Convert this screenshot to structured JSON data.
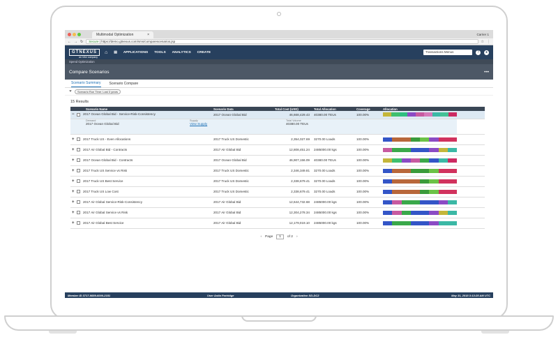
{
  "browser": {
    "tab_title": "Multimodal Optimization",
    "carrier": "Carrier 1",
    "url_secure": "Secure",
    "url": "https://demo.gtnexus.com/sms/comparescenarios.jsp"
  },
  "nav": {
    "logo": "GTNEXUS",
    "logo_sub": "an Infor company",
    "items": [
      "APPLICATIONS",
      "TOOLS",
      "ANALYTICS",
      "CREATE"
    ],
    "search": "Transactions Menus"
  },
  "breadcrumb": "Spend Optimization",
  "page_title": "Compare Scenarios",
  "tabs": [
    "Scenario Summary",
    "Scenario Compare"
  ],
  "filter_pill": "Scenario Run Time: Last 3 years",
  "results_count": "15 Results",
  "table": {
    "headers": [
      "Scenario Name",
      "Scenario Data",
      "Total Cost (USD)",
      "Total Allocation",
      "Coverage",
      "Allocation"
    ],
    "rows": [
      {
        "expander": "−",
        "name": "2017 Ocean Global Bid - Service-Risk-Consistency",
        "data": "2017 Ocean Global Bid",
        "cost": "46,668,429.43",
        "alloc": "40380.00 TEUs",
        "coverage": "100.00%",
        "bar": [
          "#c4b63a",
          "#3fbf6e",
          "#2fbf7f",
          "#8b4bc4",
          "#c75aa0",
          "#d47ab9",
          "#3bb8a5",
          "#43c196",
          "#cc2a62"
        ]
      },
      {
        "expander": "+",
        "name": "2017 Truck US - Even Allocations",
        "data": "2017 Truck US Domestic",
        "cost": "2,354,027.69",
        "alloc": "3270.00 Loads",
        "coverage": "100.00%",
        "bar": [
          "#3355c7",
          "#b8673a",
          "#b8673a",
          "#3a9b3a",
          "#6bc246",
          "#8b4bc4",
          "#d1325d",
          "#d1325d"
        ]
      },
      {
        "expander": "+",
        "name": "2017 Air Global Bid - Contracts",
        "data": "2017 Air Global Bid",
        "cost": "12,808,451.24",
        "alloc": "2485000.00 kgs",
        "coverage": "100.00%",
        "bar": [
          "#c75aa0",
          "#3aa84a",
          "#3aa84a",
          "#3355c7",
          "#3355c7",
          "#8b4bc4",
          "#c4b63a",
          "#3bb8a5"
        ]
      },
      {
        "expander": "+",
        "name": "2017 Ocean Global Bid - Contracts",
        "data": "2017 Ocean Global Bid",
        "cost": "46,907,156.09",
        "alloc": "40380.00 TEUs",
        "coverage": "100.00%",
        "bar": [
          "#c4b63a",
          "#3fbf6e",
          "#8b4bc4",
          "#c75aa0",
          "#3aa84a",
          "#3355c7",
          "#3bb8a5",
          "#cc2a62"
        ]
      },
      {
        "expander": "+",
        "name": "2017 Truck US Service vs Risk",
        "data": "2017 Truck US Domestic",
        "cost": "2,346,349.81",
        "alloc": "3270.00 Loads",
        "coverage": "100.00%",
        "bar": [
          "#3355c7",
          "#b8673a",
          "#b8673a",
          "#3a9b3a",
          "#3a9b3a",
          "#6bc246",
          "#d1325d",
          "#d1325d"
        ]
      },
      {
        "expander": "+",
        "name": "2017 Truck US Best Service",
        "data": "2017 Truck US Domestic",
        "cost": "2,338,679.41",
        "alloc": "3270.00 Loads",
        "coverage": "100.00%",
        "bar": [
          "#3355c7",
          "#b8673a",
          "#b8673a",
          "#b8673a",
          "#3a9b3a",
          "#6bc246",
          "#d1325d",
          "#d1325d"
        ]
      },
      {
        "expander": "+",
        "name": "2017 Truck US Low Cost",
        "data": "2017 Truck US Domestic",
        "cost": "2,338,679.41",
        "alloc": "3270.00 Loads",
        "coverage": "100.00%",
        "bar": [
          "#3355c7",
          "#b8673a",
          "#b8673a",
          "#b8673a",
          "#3a9b3a",
          "#6bc246",
          "#d1325d",
          "#d1325d"
        ]
      },
      {
        "expander": "+",
        "name": "2017 Air Global Service-Risk-Consistency",
        "data": "2017 Air Global Bid",
        "cost": "12,644,732.68",
        "alloc": "2485000.00 kgs",
        "coverage": "100.00%",
        "bar": [
          "#3355c7",
          "#c75aa0",
          "#3aa84a",
          "#3aa84a",
          "#3355c7",
          "#3355c7",
          "#8b4bc4",
          "#3bb8a5"
        ]
      },
      {
        "expander": "+",
        "name": "2017 Air Global Service vs Risk",
        "data": "2017 Air Global Bid",
        "cost": "12,304,278.34",
        "alloc": "2485000.00 kgs",
        "coverage": "100.00%",
        "bar": [
          "#3355c7",
          "#c75aa0",
          "#3aa84a",
          "#3355c7",
          "#3355c7",
          "#8b4bc4",
          "#c4b63a",
          "#3bb8a5"
        ]
      },
      {
        "expander": "+",
        "name": "2017 Air Global Best Service",
        "data": "2017 Air Global Bid",
        "cost": "12,179,019.10",
        "alloc": "2485000.00 kgs",
        "coverage": "100.00%",
        "bar": [
          "#3355c7",
          "#3aa84a",
          "#3aa84a",
          "#3355c7",
          "#3355c7",
          "#8b4bc4",
          "#3bb8a5",
          "#3bb8a5"
        ]
      }
    ],
    "detail": {
      "demand_label": "Demand",
      "demand_value": "2017 Ocean Global Bid",
      "supply_label": "Supply",
      "supply_link": "View Supply",
      "volume_label": "Total Volume",
      "volume_value": "40380.00 TEUs"
    }
  },
  "pager": {
    "prev": "‹",
    "label": "Page",
    "current": "1",
    "of": "of 2",
    "next": "›"
  },
  "statusbar": {
    "member": "Member ID  3717-9889-6000-2181",
    "user": "User  Anita Partridge",
    "org": "Organization  SD-DC2",
    "time": "May 31, 2018 3:13:25 AM UTC"
  }
}
